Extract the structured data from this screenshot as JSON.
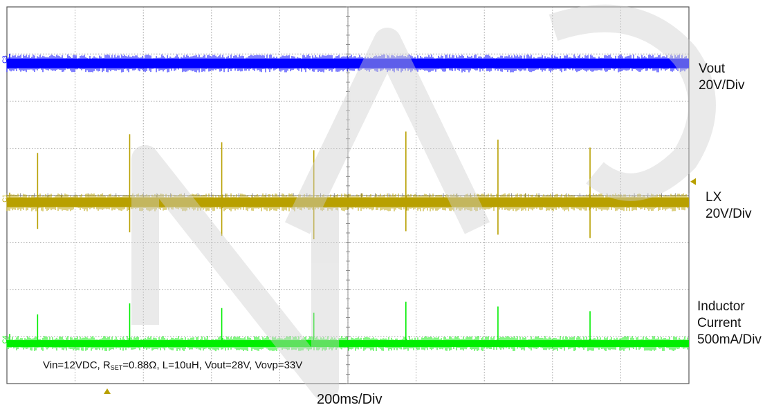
{
  "chart_data": {
    "type": "line",
    "title": "",
    "x_axis": {
      "label": "200ms/Div",
      "divisions": 10
    },
    "y_axis": {
      "divisions": 8
    },
    "grid": true,
    "series": [
      {
        "name": "Vout",
        "channel_marker": "C3",
        "scale": "20V/Div",
        "color": "#0000ff",
        "label_lines": [
          "Vout",
          "20V/Div"
        ],
        "level_div": 6.8,
        "spikes": []
      },
      {
        "name": "LX",
        "channel_marker": "C1",
        "scale": "20V/Div",
        "color": "#b8a000",
        "label_lines": [
          "LX",
          "20V/Div"
        ],
        "level_div": 3.85,
        "spikes_time_div": [
          0.45,
          1.8,
          3.15,
          4.5,
          5.85,
          7.2,
          8.55
        ]
      },
      {
        "name": "Inductor Current",
        "channel_marker": "C4",
        "scale": "500mA/Div",
        "color": "#00ee00",
        "label_lines": [
          "Inductor",
          "Current",
          "500mA/Div"
        ],
        "level_div": 0.85,
        "spikes_time_div": [
          0.45,
          1.8,
          3.15,
          4.5,
          5.85,
          7.2,
          8.55
        ]
      }
    ],
    "annotation": {
      "parts": [
        "Vin=12VDC, R",
        "SET",
        "=0.88Ω, L=10uH, Vout=28V, Vovp=33V"
      ]
    },
    "trigger_markers": {
      "level_channel": "LX"
    }
  },
  "colors": {
    "grid": "#888888",
    "frame": "#555555",
    "watermark": "#d8d8d8"
  }
}
